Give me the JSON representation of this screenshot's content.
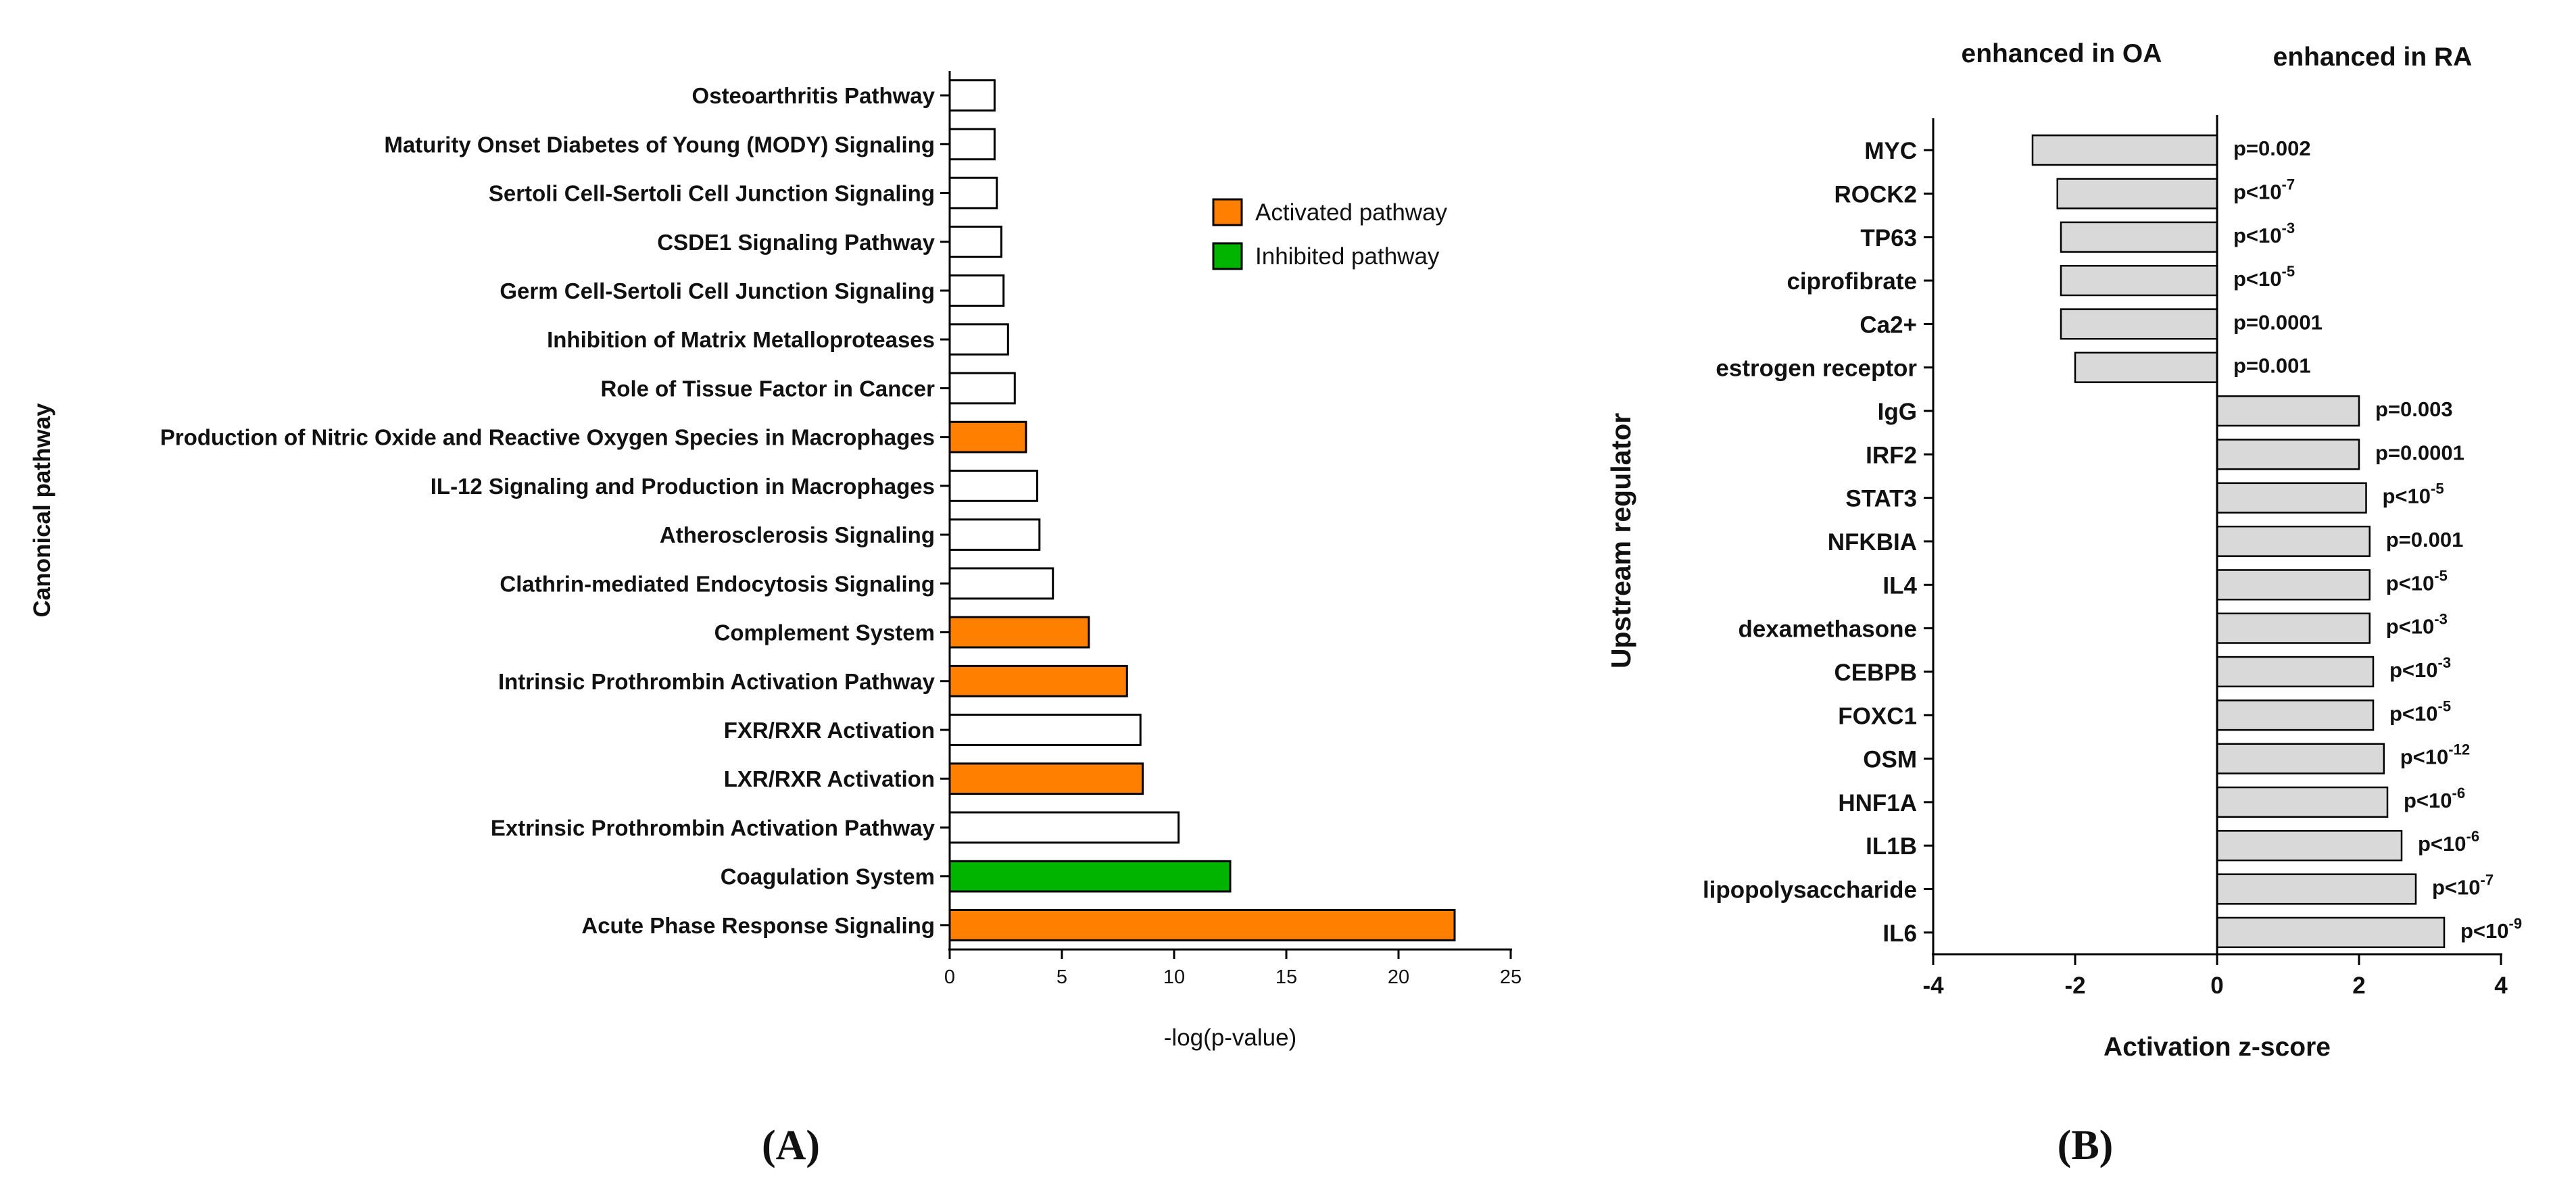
{
  "chart_data": [
    {
      "type": "bar",
      "orientation": "horizontal",
      "panel_label": "A",
      "title": "",
      "xlabel": "-log(p-value)",
      "ylabel": "Canonical pathway",
      "xlim": [
        0,
        25
      ],
      "xticks": [
        "0",
        "5",
        "10",
        "15",
        "20",
        "25"
      ],
      "xtick_values": [
        0,
        5,
        10,
        15,
        20,
        25
      ],
      "grid": false,
      "legend_position": "top-right",
      "legend": [
        {
          "label": "Activated pathway",
          "color": "#ff8000"
        },
        {
          "label": "Inhibited pathway",
          "color": "#00b400"
        }
      ],
      "categories": [
        "Osteoarthritis Pathway",
        "Maturity Onset Diabetes of Young (MODY) Signaling",
        "Sertoli Cell-Sertoli Cell Junction Signaling",
        "CSDE1 Signaling Pathway",
        "Germ Cell-Sertoli Cell Junction Signaling",
        "Inhibition of Matrix Metalloproteases",
        "Role of Tissue Factor in Cancer",
        "Production of Nitric Oxide and Reactive Oxygen Species in Macrophages",
        "IL-12 Signaling and Production in Macrophages",
        "Atherosclerosis Signaling",
        "Clathrin-mediated Endocytosis Signaling",
        "Complement System",
        "Intrinsic Prothrombin Activation Pathway",
        "FXR/RXR Activation",
        "LXR/RXR Activation",
        "Extrinsic Prothrombin Activation Pathway",
        "Coagulation System",
        "Acute Phase Response Signaling"
      ],
      "values": [
        2.0,
        2.0,
        2.1,
        2.3,
        2.4,
        2.6,
        2.9,
        3.4,
        3.9,
        4.0,
        4.6,
        6.2,
        7.9,
        8.5,
        8.6,
        10.2,
        12.5,
        22.5
      ],
      "status": [
        "none",
        "none",
        "none",
        "none",
        "none",
        "none",
        "none",
        "activated",
        "none",
        "none",
        "none",
        "activated",
        "activated",
        "none",
        "activated",
        "none",
        "inhibited",
        "activated"
      ],
      "colors": {
        "activated": "#ff8000",
        "inhibited": "#00b400",
        "none": "#ffffff"
      }
    },
    {
      "type": "bar",
      "orientation": "horizontal",
      "panel_label": "B",
      "title": "",
      "xlabel": "Activation z-score",
      "ylabel": "Upstream regulator",
      "xlim": [
        -4,
        4
      ],
      "xticks": [
        "-4",
        "-2",
        "0",
        "2",
        "4"
      ],
      "xtick_values": [
        -4,
        -2,
        0,
        2,
        4
      ],
      "grid": false,
      "header_left": "enhanced in OA",
      "header_right": "enhanced in RA",
      "bar_color": "#d9d9d9",
      "categories": [
        "MYC",
        "ROCK2",
        "TP63",
        "ciprofibrate",
        "Ca2+",
        "estrogen receptor",
        "IgG",
        "IRF2",
        "STAT3",
        "NFKBIA",
        "IL4",
        "dexamethasone",
        "CEBPB",
        "FOXC1",
        "OSM",
        "HNF1A",
        "IL1B",
        "lipopolysaccharide",
        "IL6"
      ],
      "values": [
        -2.6,
        -2.25,
        -2.2,
        -2.2,
        -2.2,
        -2.0,
        2.0,
        2.0,
        2.1,
        2.15,
        2.15,
        2.15,
        2.2,
        2.2,
        2.35,
        2.4,
        2.6,
        2.8,
        3.2
      ],
      "pvalues": [
        {
          "base": "p=0.002",
          "exp": ""
        },
        {
          "base": "p<10",
          "exp": "-7"
        },
        {
          "base": "p<10",
          "exp": "-3"
        },
        {
          "base": "p<10",
          "exp": "-5"
        },
        {
          "base": "p=0.0001",
          "exp": ""
        },
        {
          "base": "p=0.001",
          "exp": ""
        },
        {
          "base": "p=0.003",
          "exp": ""
        },
        {
          "base": "p=0.0001",
          "exp": ""
        },
        {
          "base": "p<10",
          "exp": "-5"
        },
        {
          "base": "p=0.001",
          "exp": ""
        },
        {
          "base": "p<10",
          "exp": "-5"
        },
        {
          "base": "p<10",
          "exp": "-3"
        },
        {
          "base": "p<10",
          "exp": "-3"
        },
        {
          "base": "p<10",
          "exp": "-5"
        },
        {
          "base": "p<10",
          "exp": "-12"
        },
        {
          "base": "p<10",
          "exp": "-6"
        },
        {
          "base": "p<10",
          "exp": "-6"
        },
        {
          "base": "p<10",
          "exp": "-7"
        },
        {
          "base": "p<10",
          "exp": "-9"
        }
      ]
    }
  ],
  "captions": {
    "a": "(A)",
    "b": "(B)"
  }
}
